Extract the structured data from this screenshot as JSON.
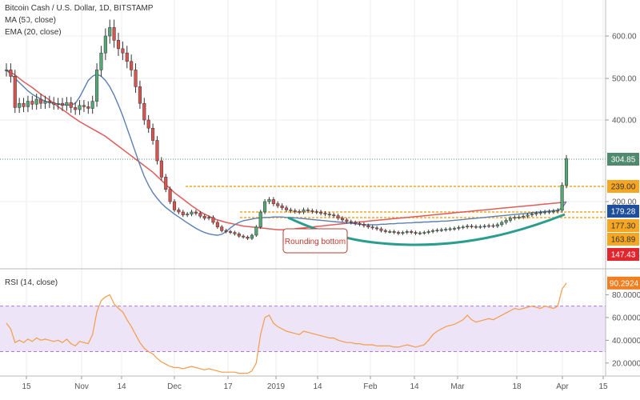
{
  "chart_data": {
    "type": "candlestick",
    "title": "Bitcoin Cash / U.S. Dollar, 1D, BITSTAMP",
    "indicators": [
      "MA (50, close)",
      "EMA (20, close)"
    ],
    "price_axis": {
      "ylim": [
        80,
        660
      ],
      "ticks": [
        {
          "value": 600,
          "label": "600.00"
        },
        {
          "value": 500,
          "label": "500.00"
        },
        {
          "value": 400,
          "label": "400.00"
        },
        {
          "value": 200,
          "label": "200.00"
        }
      ]
    },
    "x_ticks": [
      "15",
      "Nov",
      "14",
      "Dec",
      "17",
      "2019",
      "14",
      "Feb",
      "14",
      "Mar",
      "18",
      "Apr",
      "15"
    ],
    "price_levels": [
      {
        "value": 304.85,
        "label": "304.85",
        "color": "#4f8a6e",
        "style": "dotted-teal"
      },
      {
        "value": 239.0,
        "label": "239.00",
        "color": "#f5a623",
        "style": "dashed-orange"
      },
      {
        "value": 179.28,
        "label": "179.28",
        "color": "#1f4f9c",
        "style": "none"
      },
      {
        "value": 177.3,
        "label": "177.30",
        "color": "#f5a623",
        "style": "dashed-orange"
      },
      {
        "value": 163.89,
        "label": "163.89",
        "color": "#f5a623",
        "style": "dashed-orange"
      },
      {
        "value": 147.43,
        "label": "147.43",
        "color": "#e0262e",
        "style": "none"
      }
    ],
    "annotation": "Rounding bottom",
    "candle_closes": [
      520,
      505,
      430,
      440,
      432,
      445,
      438,
      450,
      440,
      445,
      442,
      438,
      440,
      435,
      442,
      430,
      425,
      435,
      432,
      428,
      445,
      520,
      560,
      600,
      620,
      590,
      570,
      560,
      540,
      520,
      480,
      440,
      400,
      380,
      350,
      300,
      260,
      230,
      200,
      180,
      175,
      168,
      170,
      175,
      172,
      165,
      160,
      162,
      150,
      140,
      132,
      130,
      128,
      125,
      120,
      118,
      115,
      122,
      140,
      175,
      200,
      205,
      195,
      190,
      185,
      180,
      178,
      176,
      175,
      180,
      178,
      176,
      175,
      172,
      170,
      168,
      166,
      160,
      156,
      152,
      150,
      148,
      146,
      143,
      140,
      138,
      136,
      132,
      130,
      130,
      128,
      126,
      128,
      130,
      128,
      126,
      127,
      128,
      130,
      132,
      133,
      134,
      135,
      136,
      137,
      139,
      140,
      142,
      141,
      140,
      141,
      142,
      143,
      142,
      145,
      150,
      155,
      160,
      162,
      163,
      165,
      168,
      170,
      172,
      174,
      175,
      176,
      177,
      179,
      240,
      305
    ],
    "ma50": [
      520,
      515,
      508,
      500,
      492,
      485,
      478,
      470,
      462,
      455,
      448,
      440,
      432,
      425,
      418,
      410,
      403,
      396,
      390,
      384,
      378,
      372,
      366,
      360,
      352,
      344,
      336,
      328,
      320,
      312,
      304,
      296,
      288,
      280,
      272,
      262,
      252,
      242,
      232,
      222,
      214,
      206,
      198,
      190,
      183,
      176,
      170,
      165,
      160,
      156,
      153,
      150,
      148,
      146,
      144,
      142,
      141,
      140,
      139,
      138,
      137,
      136,
      135,
      134,
      134,
      134,
      135,
      136,
      137,
      138,
      139,
      140,
      141,
      142,
      143,
      144,
      145,
      146,
      147,
      148,
      149,
      150,
      151,
      152,
      153,
      154,
      155,
      156,
      157,
      158,
      159,
      160,
      161,
      162,
      163,
      164,
      165,
      166,
      167,
      168,
      169,
      170,
      171,
      172,
      173,
      174,
      175,
      176,
      177,
      178,
      179,
      180,
      181,
      182,
      183,
      184,
      185,
      186,
      187,
      188,
      189,
      190,
      191,
      192,
      193,
      194,
      195,
      196,
      197,
      198,
      199
    ],
    "ema20": [
      520,
      510,
      500,
      490,
      480,
      470,
      462,
      456,
      450,
      445,
      442,
      440,
      438,
      437,
      436,
      436,
      440,
      455,
      475,
      495,
      505,
      510,
      505,
      495,
      480,
      460,
      436,
      410,
      380,
      350,
      320,
      290,
      262,
      240,
      222,
      208,
      196,
      186,
      178,
      170,
      163,
      156,
      149,
      143,
      137,
      132,
      128,
      125,
      123,
      122,
      124,
      130,
      138,
      145,
      150,
      154,
      156,
      158,
      160,
      161,
      162,
      162,
      163,
      163,
      163,
      162,
      162,
      161,
      160,
      159,
      158,
      157,
      156,
      155,
      154,
      153,
      152,
      151,
      150,
      149,
      148,
      147,
      146,
      145,
      145,
      145,
      145,
      146,
      146,
      147,
      147,
      148,
      148,
      149,
      149,
      150,
      150,
      151,
      151,
      152,
      152,
      153,
      153,
      154,
      155,
      156,
      157,
      158,
      159,
      160,
      161,
      162,
      163,
      164,
      165,
      166,
      167,
      168,
      169,
      170,
      171,
      172,
      173,
      174,
      175,
      176,
      177,
      178,
      179,
      185,
      200
    ],
    "rsi_panel": {
      "title": "RSI (14, close)",
      "last_value": "90.2924",
      "ylim": [
        10,
        100
      ],
      "ticks": [
        {
          "value": 80,
          "label": "80.0000"
        },
        {
          "value": 60,
          "label": "60.0000"
        },
        {
          "value": 40,
          "label": "40.0000"
        },
        {
          "value": 20,
          "label": "20.0000"
        }
      ],
      "band": [
        30,
        70
      ],
      "values": [
        55,
        50,
        38,
        40,
        38,
        41,
        39,
        42,
        40,
        41,
        40,
        39,
        40,
        38,
        41,
        37,
        35,
        39,
        38,
        37,
        45,
        65,
        75,
        78,
        80,
        72,
        68,
        65,
        58,
        52,
        45,
        38,
        33,
        30,
        28,
        24,
        21,
        19,
        17,
        16,
        16,
        15,
        16,
        17,
        16,
        15,
        14,
        15,
        14,
        13,
        12,
        12,
        12,
        12,
        11,
        11,
        11,
        13,
        20,
        45,
        60,
        62,
        55,
        52,
        50,
        48,
        47,
        46,
        45,
        48,
        47,
        46,
        45,
        44,
        43,
        42,
        42,
        40,
        39,
        38,
        38,
        37,
        37,
        36,
        36,
        36,
        35,
        35,
        35,
        35,
        34,
        34,
        35,
        36,
        35,
        34,
        35,
        36,
        40,
        45,
        48,
        50,
        52,
        53,
        54,
        56,
        58,
        62,
        58,
        56,
        57,
        58,
        59,
        58,
        60,
        62,
        64,
        66,
        68,
        67,
        68,
        69,
        70,
        69,
        68,
        70,
        69,
        68,
        70,
        85,
        90.2924
      ]
    }
  }
}
